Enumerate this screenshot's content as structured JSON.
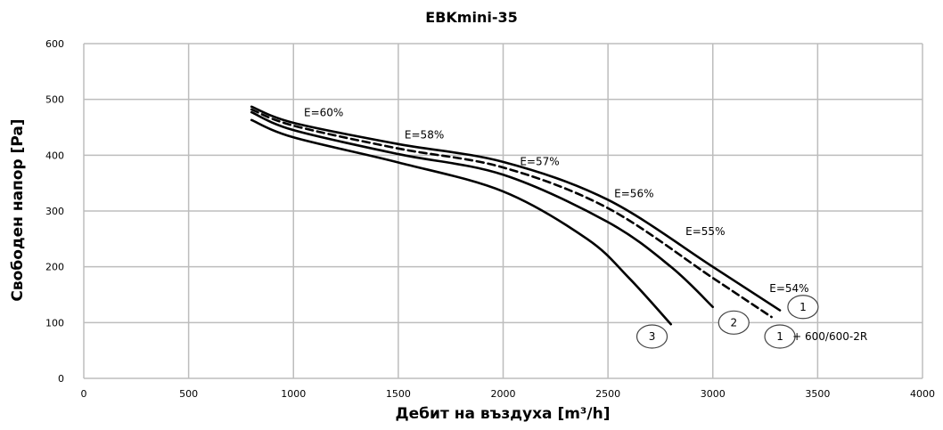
{
  "chart_data": {
    "type": "line",
    "title": "EBKmini-35",
    "xlabel": "Дебит на въздуха [m³/h]",
    "ylabel": "Свободен напор [Pa]",
    "xlim": [
      0,
      4000
    ],
    "ylim": [
      0,
      600
    ],
    "x_ticks": [
      0,
      500,
      1000,
      1500,
      2000,
      2500,
      3000,
      3500,
      4000
    ],
    "y_ticks": [
      0,
      100,
      200,
      300,
      400,
      500,
      600
    ],
    "x_tick_labels": [
      "0",
      "500",
      "1000",
      "1500",
      "2000",
      "2500",
      "3000",
      "3500",
      "4000"
    ],
    "y_tick_labels": [
      "0",
      "100",
      "200",
      "300",
      "400",
      "500",
      "600"
    ],
    "grid": true,
    "series": [
      {
        "name": "1",
        "color": "#000000",
        "style": "solid",
        "points": [
          [
            800,
            487
          ],
          [
            1000,
            458
          ],
          [
            1500,
            420
          ],
          [
            2000,
            388
          ],
          [
            2500,
            320
          ],
          [
            3000,
            200
          ],
          [
            3320,
            122
          ]
        ]
      },
      {
        "name": "1 + 600/600-2R",
        "color": "#000000",
        "style": "dashed",
        "points": [
          [
            800,
            482
          ],
          [
            1000,
            453
          ],
          [
            1500,
            412
          ],
          [
            2000,
            378
          ],
          [
            2500,
            305
          ],
          [
            3000,
            180
          ],
          [
            3280,
            110
          ]
        ]
      },
      {
        "name": "2",
        "color": "#000000",
        "style": "solid",
        "points": [
          [
            800,
            477
          ],
          [
            1000,
            445
          ],
          [
            1500,
            402
          ],
          [
            2000,
            365
          ],
          [
            2500,
            280
          ],
          [
            2800,
            200
          ],
          [
            3000,
            128
          ]
        ]
      },
      {
        "name": "3",
        "color": "#000000",
        "style": "solid",
        "points": [
          [
            800,
            463
          ],
          [
            1000,
            432
          ],
          [
            1500,
            387
          ],
          [
            2000,
            335
          ],
          [
            2400,
            250
          ],
          [
            2600,
            180
          ],
          [
            2800,
            97
          ]
        ]
      }
    ],
    "efficiency_labels": [
      {
        "text": "E=60%",
        "x": 1050,
        "y": 470
      },
      {
        "text": "E=58%",
        "x": 1530,
        "y": 430
      },
      {
        "text": "E=57%",
        "x": 2080,
        "y": 382
      },
      {
        "text": "E=56%",
        "x": 2530,
        "y": 325
      },
      {
        "text": "E=55%",
        "x": 2870,
        "y": 257
      },
      {
        "text": "E=54%",
        "x": 3270,
        "y": 155
      }
    ],
    "curve_markers": [
      {
        "text": "1",
        "x": 3430,
        "y": 128
      },
      {
        "text": "2",
        "x": 3100,
        "y": 100
      },
      {
        "text": "3",
        "x": 2710,
        "y": 75
      },
      {
        "text": "1",
        "x": 3320,
        "y": 75
      }
    ],
    "marker_note": {
      "text": "+ 600/600-2R",
      "x": 3380,
      "y": 75
    }
  }
}
